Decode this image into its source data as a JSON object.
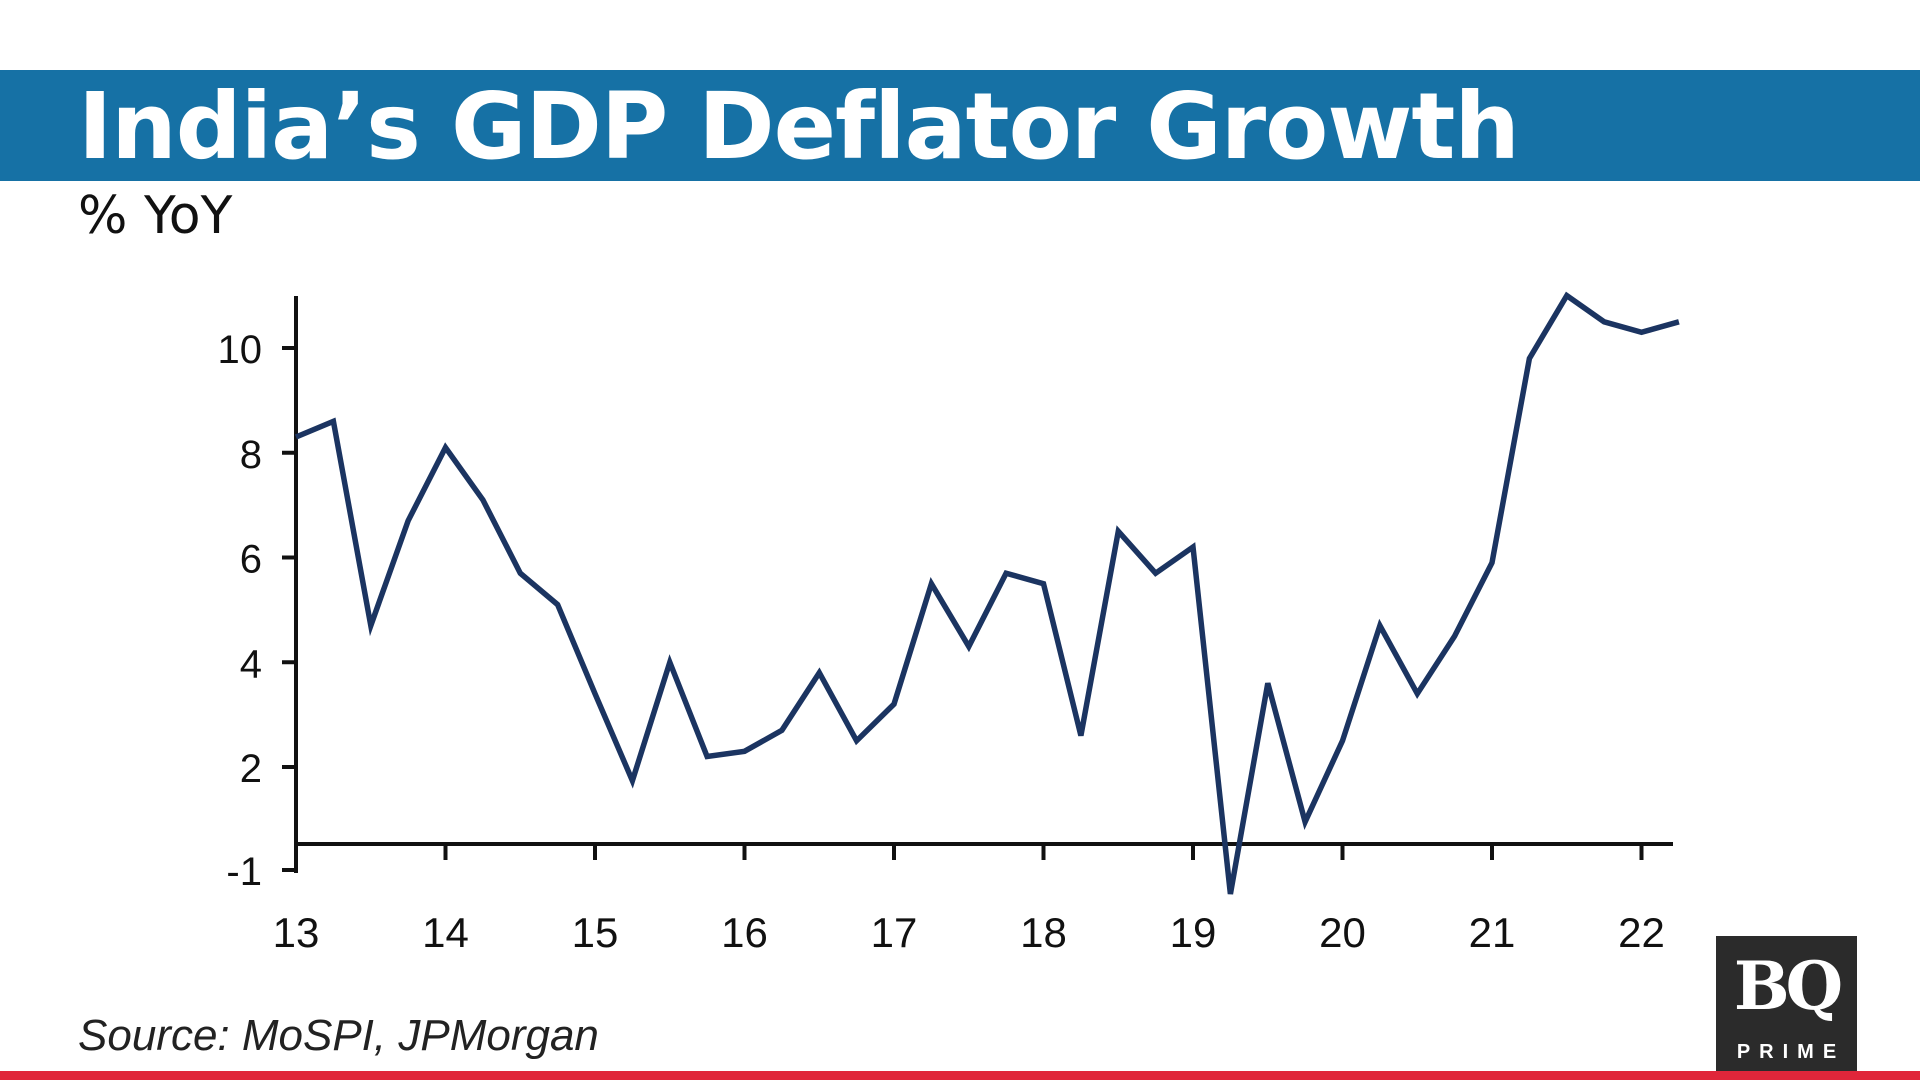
{
  "header": {
    "title": "India’s GDP Deflator Growth",
    "subtitle": "% YoY"
  },
  "footer": {
    "source": "Source: MoSPI, JPMorgan"
  },
  "logo": {
    "main": "BQ",
    "sub": "PRIME"
  },
  "colors": {
    "band": "#1671a5",
    "line": "#1b3461",
    "accent_bar": "#e0263a",
    "logo_bg": "#2b2b2b"
  },
  "chart_data": {
    "type": "line",
    "title": "India’s GDP Deflator Growth",
    "ylabel": "% YoY",
    "xlabel": "",
    "ylim": [
      -1,
      11
    ],
    "xlim": [
      13,
      22.25
    ],
    "grid": false,
    "legend": "none",
    "y_ticks": [
      {
        "value": -1,
        "label": "-1"
      },
      {
        "value": 2,
        "label": "2"
      },
      {
        "value": 4,
        "label": "4"
      },
      {
        "value": 6,
        "label": "6"
      },
      {
        "value": 8,
        "label": "8"
      },
      {
        "value": 10,
        "label": "10"
      }
    ],
    "x_ticks": [
      {
        "value": 13,
        "label": "13"
      },
      {
        "value": 14,
        "label": "14"
      },
      {
        "value": 15,
        "label": "15"
      },
      {
        "value": 16,
        "label": "16"
      },
      {
        "value": 17,
        "label": "17"
      },
      {
        "value": 18,
        "label": "18"
      },
      {
        "value": 19,
        "label": "19"
      },
      {
        "value": 20,
        "label": "20"
      },
      {
        "value": 21,
        "label": "21"
      },
      {
        "value": 22,
        "label": "22"
      }
    ],
    "series": [
      {
        "name": "GDP Deflator Growth",
        "x": [
          13.0,
          13.25,
          13.5,
          13.75,
          14.0,
          14.25,
          14.5,
          14.75,
          15.0,
          15.25,
          15.5,
          15.75,
          16.0,
          16.25,
          16.5,
          16.75,
          17.0,
          17.25,
          17.5,
          17.75,
          18.0,
          18.25,
          18.5,
          18.75,
          19.0,
          19.25,
          19.5,
          19.75,
          20.0,
          20.25,
          20.5,
          20.75,
          21.0,
          21.25,
          21.5,
          21.75,
          22.0,
          22.25
        ],
        "values": [
          8.3,
          8.6,
          4.7,
          6.7,
          8.1,
          7.1,
          5.7,
          5.1,
          3.4,
          1.6,
          4.0,
          2.2,
          2.3,
          2.7,
          3.8,
          2.5,
          3.2,
          5.5,
          4.3,
          5.7,
          5.5,
          2.6,
          6.5,
          5.7,
          6.2,
          -1.7,
          3.6,
          0.4,
          2.5,
          4.7,
          3.4,
          4.5,
          5.9,
          9.8,
          11.0,
          10.5,
          10.3,
          10.5
        ]
      }
    ]
  }
}
